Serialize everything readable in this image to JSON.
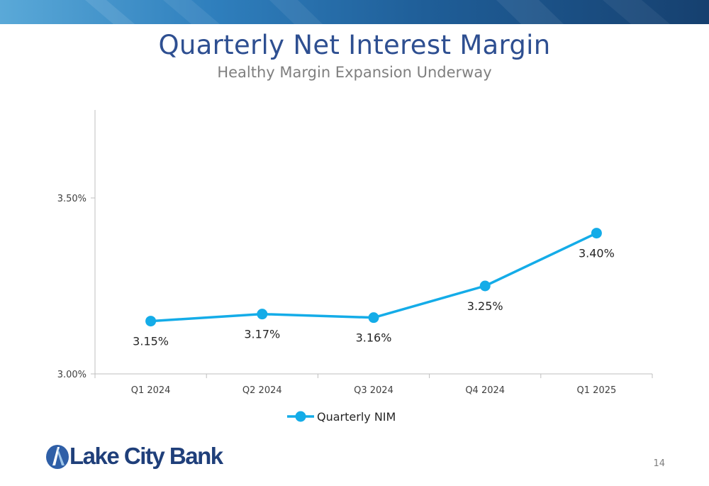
{
  "header": {
    "title": "Quarterly Net Interest Margin",
    "subtitle": "Healthy Margin Expansion Underway"
  },
  "colors": {
    "title": "#2e4f91",
    "series": "#14ace8",
    "banner": "#1f5e98"
  },
  "chart_data": {
    "type": "line",
    "title": "",
    "xlabel": "",
    "ylabel": "",
    "categories": [
      "Q1 2024",
      "Q2 2024",
      "Q3 2024",
      "Q4 2024",
      "Q1 2025"
    ],
    "series": [
      {
        "name": "Quarterly NIM",
        "values": [
          3.15,
          3.17,
          3.16,
          3.25,
          3.4
        ],
        "labels": [
          "3.15%",
          "3.17%",
          "3.16%",
          "3.25%",
          "3.40%"
        ],
        "color": "#14ace8"
      }
    ],
    "ylim": [
      3.0,
      3.75
    ],
    "yticks": [
      3.0,
      3.5
    ],
    "ytick_labels": [
      "3.00%",
      "3.50%"
    ],
    "grid": false,
    "legend_position": "bottom"
  },
  "logo": {
    "text": "Lake City Bank"
  },
  "page_number": "14"
}
